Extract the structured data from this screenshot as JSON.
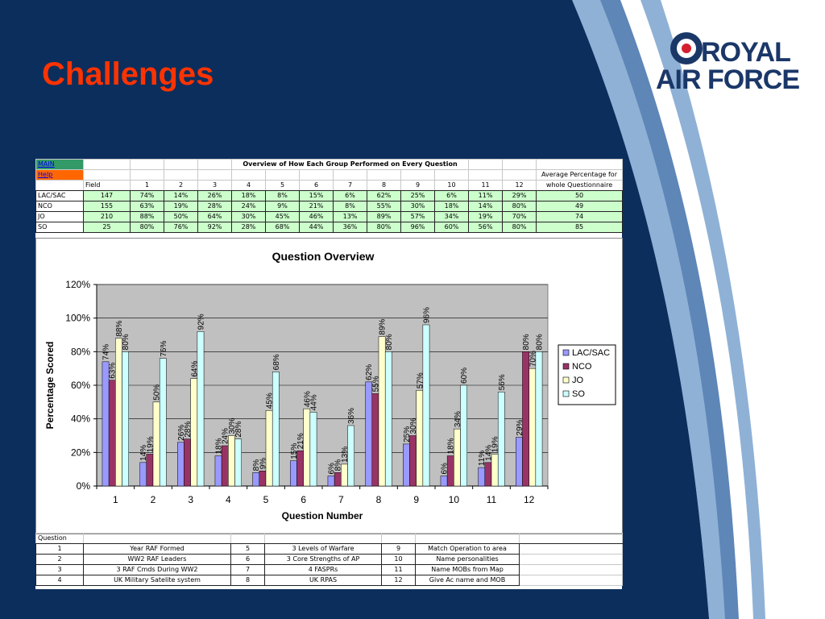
{
  "slide": {
    "title": "Challenges"
  },
  "logo": {
    "line1": "ROYAL",
    "line2": "AIR FORCE",
    "roundel_colors": [
      "#1a3768",
      "#ffffff",
      "#d51f2f"
    ]
  },
  "colors": {
    "background": "#0c2e5c",
    "title": "#ff3300",
    "band_light": "#8fb1d6",
    "band_dark": "#5e86b7"
  },
  "sheet": {
    "main_link": "MAIN",
    "help_link": "Help",
    "table_title": "Overview of How Each Group Performed on Every Question",
    "avg_header": [
      "Average Percentage for",
      "whole Questionnaire"
    ],
    "field_header": "Field",
    "question_numbers": [
      "1",
      "2",
      "3",
      "4",
      "5",
      "6",
      "7",
      "8",
      "9",
      "10",
      "11",
      "12"
    ],
    "rows": [
      {
        "label": "LAC/SAC",
        "field": "147",
        "scores": [
          "74%",
          "14%",
          "26%",
          "18%",
          "8%",
          "15%",
          "6%",
          "62%",
          "25%",
          "6%",
          "11%",
          "29%"
        ],
        "avg": "50"
      },
      {
        "label": "NCO",
        "field": "155",
        "scores": [
          "63%",
          "19%",
          "28%",
          "24%",
          "9%",
          "21%",
          "8%",
          "55%",
          "30%",
          "18%",
          "14%",
          "80%"
        ],
        "avg": "49"
      },
      {
        "label": "JO",
        "field": "210",
        "scores": [
          "88%",
          "50%",
          "64%",
          "30%",
          "45%",
          "46%",
          "13%",
          "89%",
          "57%",
          "34%",
          "19%",
          "70%"
        ],
        "avg": "74"
      },
      {
        "label": "SO",
        "field": "25",
        "scores": [
          "80%",
          "76%",
          "92%",
          "28%",
          "68%",
          "44%",
          "36%",
          "80%",
          "96%",
          "60%",
          "56%",
          "80%"
        ],
        "avg": "85"
      }
    ],
    "question_header": "Question",
    "questions": [
      [
        "1",
        "Year RAF Formed",
        "5",
        "3 Levels of Warfare",
        "9",
        "Match Operation to area"
      ],
      [
        "2",
        "WW2 RAF Leaders",
        "6",
        "3 Core Strengths of AP",
        "10",
        "Name personalities"
      ],
      [
        "3",
        "3 RAF Cmds During WW2",
        "7",
        "4 FASPRs",
        "11",
        "Name MOBs from Map"
      ],
      [
        "4",
        "UK Military Satelite system",
        "8",
        "UK RPAS",
        "12",
        "Give Ac name and MOB"
      ]
    ]
  },
  "chart_data": {
    "type": "bar",
    "title": "Question Overview",
    "xlabel": "Question Number",
    "ylabel": "Percentage Scored",
    "categories": [
      "1",
      "2",
      "3",
      "4",
      "5",
      "6",
      "7",
      "8",
      "9",
      "10",
      "11",
      "12"
    ],
    "ylim": [
      0,
      120
    ],
    "yticks": [
      "0%",
      "20%",
      "40%",
      "60%",
      "80%",
      "100%",
      "120%"
    ],
    "grid": true,
    "plot_background": "#c0c0c0",
    "legend_position": "right",
    "series": [
      {
        "name": "LAC/SAC",
        "color": "#9999ff",
        "values": [
          74,
          14,
          26,
          18,
          8,
          15,
          6,
          62,
          25,
          6,
          11,
          29
        ]
      },
      {
        "name": "NCO",
        "color": "#993366",
        "values": [
          63,
          19,
          28,
          24,
          9,
          21,
          8,
          55,
          30,
          18,
          14,
          80
        ]
      },
      {
        "name": "JO",
        "color": "#ffffcc",
        "values": [
          88,
          50,
          64,
          30,
          45,
          46,
          13,
          89,
          57,
          34,
          19,
          70
        ]
      },
      {
        "name": "SO",
        "color": "#ccffff",
        "values": [
          80,
          76,
          92,
          28,
          68,
          44,
          36,
          80,
          96,
          60,
          56,
          80
        ]
      }
    ]
  }
}
